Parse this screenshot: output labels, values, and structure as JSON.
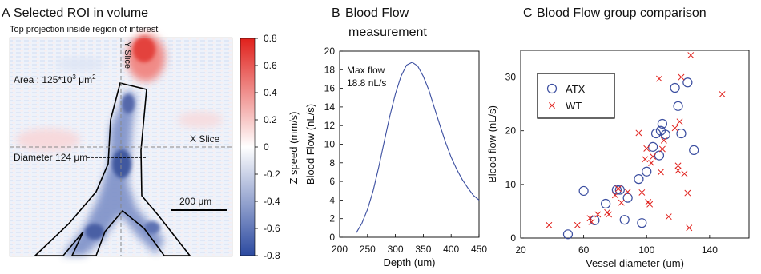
{
  "figure": {
    "panels": [
      {
        "letter": "A",
        "title": "Selected ROI in volume"
      },
      {
        "letter": "B",
        "title": "Blood Flow",
        "title_line2": "measurement"
      },
      {
        "letter": "C",
        "title": "Blood Flow group comparison"
      }
    ]
  },
  "panel_a": {
    "subtitle": "Top projection inside region of interest",
    "area_label_prefix": "Area : 125*10",
    "area_label_sup1": "3",
    "area_label_unit": " μm",
    "area_label_sup2": "2",
    "y_slice_label": "Y Slice",
    "x_slice_label": "X Slice",
    "diameter_label": "Diameter 124 μm",
    "scale_bar_label": "200 μm",
    "colorbar": {
      "label": "Z speed (mm/s)",
      "ticks": [
        "0.8",
        "0.6",
        "0.4",
        "0.2",
        "0",
        "-0.2",
        "-0.4",
        "-0.6",
        "-0.8"
      ],
      "min": -0.8,
      "max": 0.8,
      "colors": {
        "negative": "#2c4aa0",
        "zero": "#ffffff",
        "positive": "#e0211c"
      }
    }
  },
  "chart_data": [
    {
      "type": "line",
      "panel": "B",
      "title": "Blood Flow measurement",
      "xlabel": "Depth (um)",
      "ylabel": "Blood Flow (nL/s)",
      "xlim": [
        200,
        450
      ],
      "ylim": [
        0,
        20
      ],
      "xticks": [
        200,
        250,
        300,
        350,
        400,
        450
      ],
      "yticks": [
        0,
        2,
        4,
        6,
        8,
        10,
        12,
        14,
        16,
        18,
        20
      ],
      "annotation": {
        "line1": "Max flow",
        "line2": "18.8 nL/s"
      },
      "series": [
        {
          "color": "#3b4ea0",
          "x": [
            230,
            240,
            250,
            260,
            270,
            280,
            290,
            300,
            310,
            320,
            330,
            340,
            350,
            360,
            370,
            380,
            390,
            400,
            410,
            420,
            430,
            440,
            450
          ],
          "y": [
            0.5,
            1.5,
            3.0,
            5.0,
            7.5,
            10.3,
            13.0,
            15.4,
            17.3,
            18.5,
            18.8,
            18.4,
            17.3,
            15.8,
            13.9,
            12.0,
            10.2,
            8.6,
            7.3,
            6.2,
            5.3,
            4.5,
            4.0
          ]
        }
      ]
    },
    {
      "type": "scatter",
      "panel": "C",
      "title": "Blood Flow group comparison",
      "xlabel": "Vessel diameter (um)",
      "ylabel": "Blood flow (nL/s)",
      "xlim": [
        20,
        165
      ],
      "ylim": [
        0,
        35
      ],
      "xticks": [
        20,
        60,
        100,
        140
      ],
      "yticks": [
        0,
        10,
        20,
        30
      ],
      "legend_position": "top-left",
      "series": [
        {
          "name": "ATX",
          "marker": "circle",
          "color": "#3b4ea0",
          "points": [
            [
              50,
              0.7
            ],
            [
              60,
              8.8
            ],
            [
              67,
              3.3
            ],
            [
              74,
              6.4
            ],
            [
              81,
              9.0
            ],
            [
              83,
              9.0
            ],
            [
              86,
              3.4
            ],
            [
              88,
              7.5
            ],
            [
              95,
              11.0
            ],
            [
              97,
              2.8
            ],
            [
              100,
              12.4
            ],
            [
              104,
              17.0
            ],
            [
              106,
              19.5
            ],
            [
              108,
              15.4
            ],
            [
              109,
              20.0
            ],
            [
              110,
              21.3
            ],
            [
              112,
              19.3
            ],
            [
              118,
              28.0
            ],
            [
              120,
              24.6
            ],
            [
              122,
              19.5
            ],
            [
              126,
              29.0
            ],
            [
              130,
              16.4
            ]
          ]
        },
        {
          "name": "WT",
          "marker": "x",
          "color": "#e0211c",
          "points": [
            [
              38,
              2.4
            ],
            [
              56,
              2.4
            ],
            [
              64,
              3.7
            ],
            [
              65,
              3.0
            ],
            [
              69,
              4.4
            ],
            [
              75,
              4.8
            ],
            [
              76,
              4.4
            ],
            [
              80,
              8.0
            ],
            [
              82,
              9.2
            ],
            [
              84,
              6.6
            ],
            [
              88,
              8.6
            ],
            [
              95,
              19.6
            ],
            [
              97,
              8.5
            ],
            [
              99,
              14.7
            ],
            [
              100,
              16.7
            ],
            [
              101,
              6.7
            ],
            [
              102,
              6.3
            ],
            [
              103,
              14.0
            ],
            [
              104,
              15.2
            ],
            [
              108,
              29.7
            ],
            [
              109,
              12.3
            ],
            [
              110,
              16.6
            ],
            [
              111,
              18.2
            ],
            [
              114,
              4.0
            ],
            [
              118,
              20.5
            ],
            [
              120,
              12.6
            ],
            [
              120,
              13.5
            ],
            [
              121,
              21.7
            ],
            [
              122,
              30.0
            ],
            [
              124,
              12.0
            ],
            [
              126,
              8.4
            ],
            [
              127,
              1.9
            ],
            [
              128,
              34.1
            ],
            [
              148,
              26.8
            ]
          ]
        }
      ]
    }
  ]
}
